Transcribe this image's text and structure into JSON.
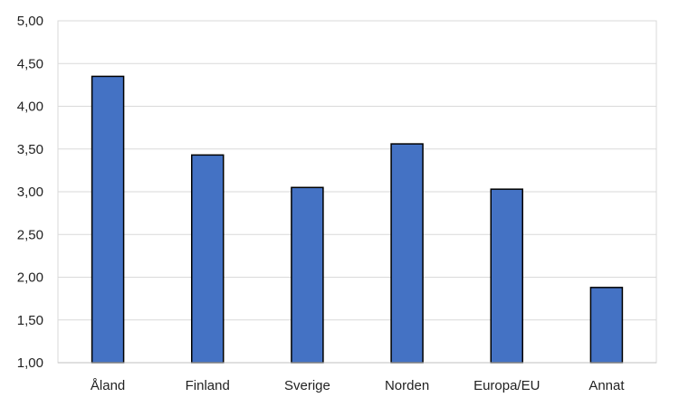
{
  "chart_data": {
    "type": "bar",
    "title": "",
    "xlabel": "",
    "ylabel": "",
    "categories": [
      "Åland",
      "Finland",
      "Sverige",
      "Norden",
      "Europa/EU",
      "Annat"
    ],
    "values": [
      4.35,
      3.43,
      3.05,
      3.56,
      3.03,
      1.88
    ],
    "ylim": [
      1.0,
      5.0
    ],
    "yticks": [
      "1,00",
      "1,50",
      "2,00",
      "2,50",
      "3,00",
      "3,50",
      "4,00",
      "4,50",
      "5,00"
    ],
    "grid": true,
    "legend": "none",
    "colors": {
      "bar_fill": "#4472C4",
      "bar_stroke": "#000000",
      "grid": "#D9D9D9",
      "axis": "#BFBFBF"
    }
  }
}
